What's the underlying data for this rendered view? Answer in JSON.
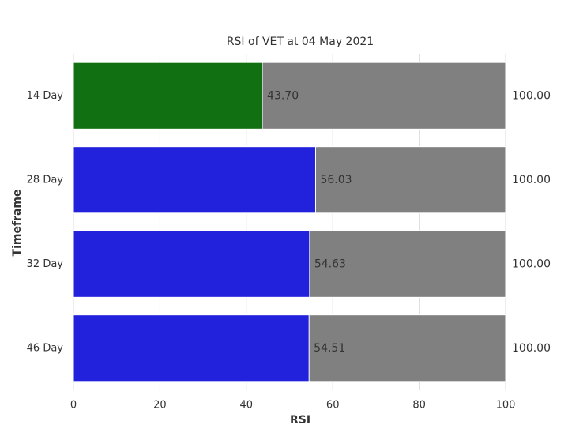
{
  "chart_data": {
    "type": "bar",
    "orientation": "horizontal",
    "title": "RSI of VET at 04 May 2021",
    "xlabel": "RSI",
    "ylabel": "Timeframe",
    "categories": [
      "14 Day",
      "28 Day",
      "32 Day",
      "46 Day"
    ],
    "series": [
      {
        "colors": [
          "#808080",
          "#808080",
          "#808080",
          "#808080"
        ],
        "values": [
          100,
          100,
          100,
          100
        ],
        "value_labels": [
          "100.00",
          "100.00",
          "100.00",
          "100.00"
        ],
        "label_position": "outside"
      },
      {
        "colors": [
          "#117011",
          "#2222dd",
          "#2222dd",
          "#2222dd"
        ],
        "values": [
          43.7,
          56.03,
          54.63,
          54.51
        ],
        "value_labels": [
          "43.70",
          "56.03",
          "54.63",
          "54.51"
        ],
        "label_position": "inside"
      }
    ],
    "xlim": [
      0,
      100
    ],
    "xticks": [
      0,
      20,
      40,
      60,
      80,
      100
    ],
    "grid": true
  }
}
